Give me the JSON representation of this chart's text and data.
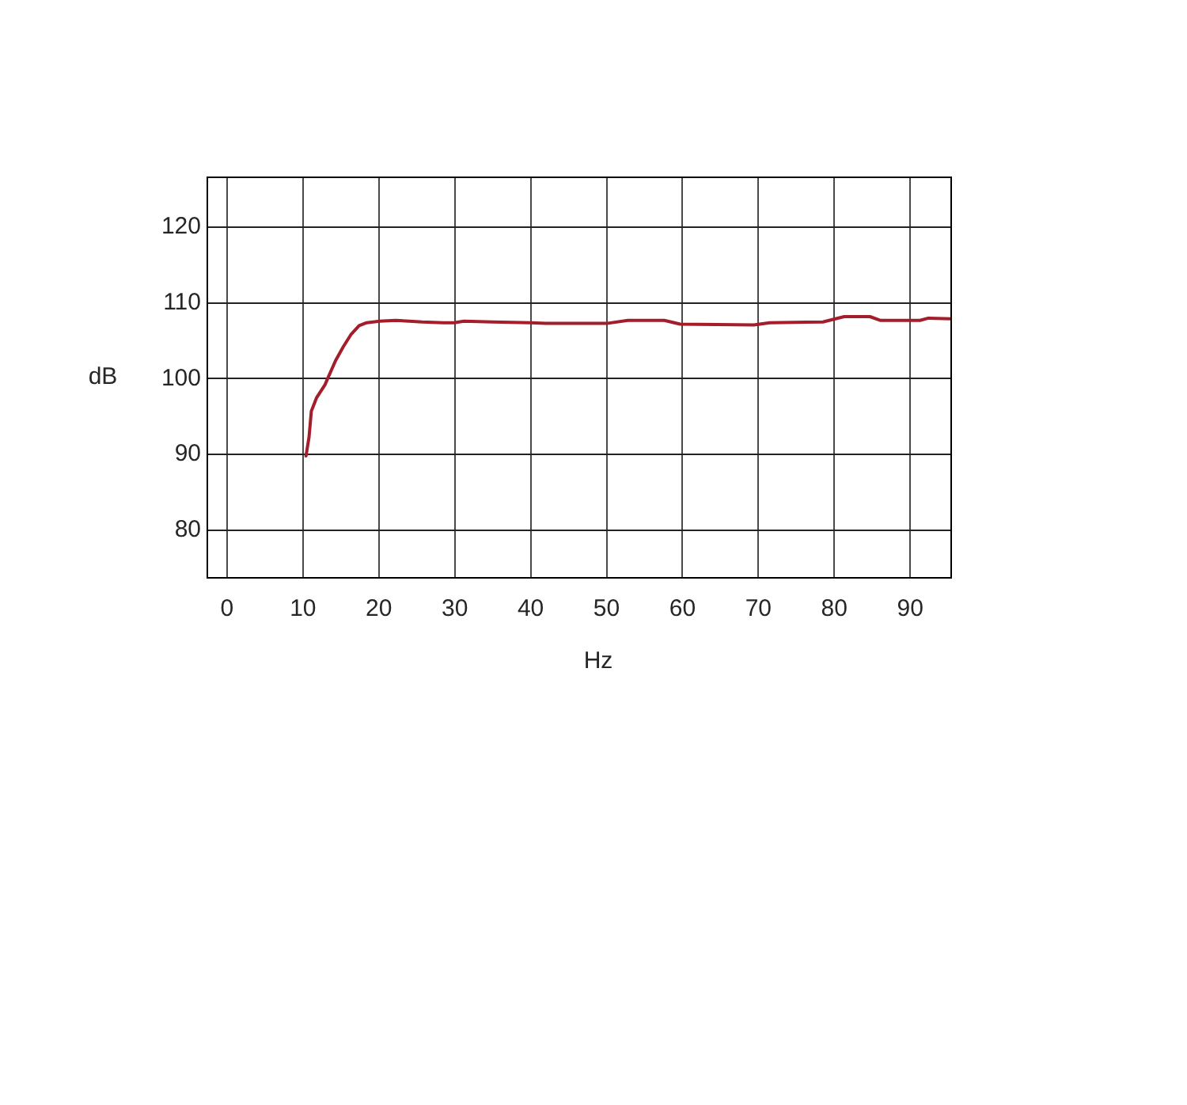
{
  "chart_data": {
    "type": "line",
    "xlabel": "Hz",
    "ylabel": "dB",
    "x": [
      10.4,
      10.8,
      11.1,
      11.8,
      12.9,
      13.2,
      14.3,
      15.3,
      16.3,
      17.4,
      18.4,
      20.1,
      22.2,
      24,
      25.7,
      28.5,
      29.9,
      31.2,
      35,
      40,
      42,
      50,
      52.8,
      57.6,
      59.7,
      69.4,
      71.5,
      78.5,
      81.3,
      84.7,
      86.1,
      91.3,
      92.4,
      95.4
    ],
    "series": [
      {
        "color": "#a31d2b",
        "values": [
          89.8,
          92.3,
          95.7,
          97.5,
          99.2,
          99.9,
          102.4,
          104.2,
          105.8,
          107.0,
          107.4,
          107.6,
          107.7,
          107.6,
          107.5,
          107.4,
          107.4,
          107.6,
          107.5,
          107.4,
          107.3,
          107.3,
          107.7,
          107.7,
          107.2,
          107.1,
          107.4,
          107.5,
          108.2,
          108.2,
          107.7,
          107.7,
          108.0,
          107.9
        ]
      }
    ],
    "xlim": [
      -2.6,
      95.4
    ],
    "ylim": [
      73.7,
      126.6
    ],
    "xticks": [
      0,
      10,
      20,
      30,
      40,
      50,
      60,
      70,
      80,
      90
    ],
    "yticks": [
      80,
      90,
      100,
      110,
      120
    ],
    "grid": true,
    "legend": false,
    "marker": "none",
    "line_style": "solid"
  }
}
